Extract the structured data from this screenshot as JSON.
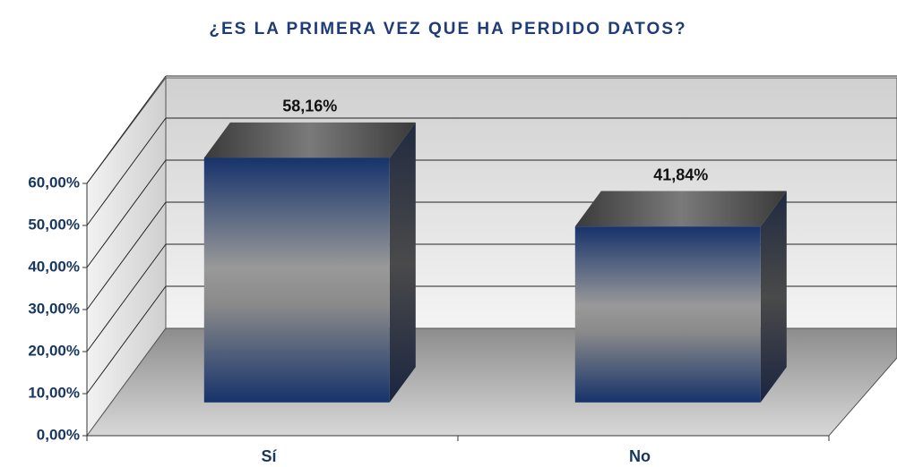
{
  "chart_data": {
    "type": "bar3d",
    "title": "¿ES LA PRIMERA VEZ QUE HA PERDIDO DATOS?",
    "categories": [
      "Sí",
      "No"
    ],
    "values": [
      58.16,
      41.84
    ],
    "value_labels": [
      "58,16%",
      "41,84%"
    ],
    "color": "#17336b",
    "ylim": [
      0,
      60
    ],
    "yticks": [
      {
        "value": 0,
        "label": "0,00%"
      },
      {
        "value": 10,
        "label": "10,00%"
      },
      {
        "value": 20,
        "label": "20,00%"
      },
      {
        "value": 30,
        "label": "30,00%"
      },
      {
        "value": 40,
        "label": "40,00%"
      },
      {
        "value": 50,
        "label": "50,00%"
      },
      {
        "value": 60,
        "label": "60,00%"
      }
    ],
    "grid": true
  }
}
